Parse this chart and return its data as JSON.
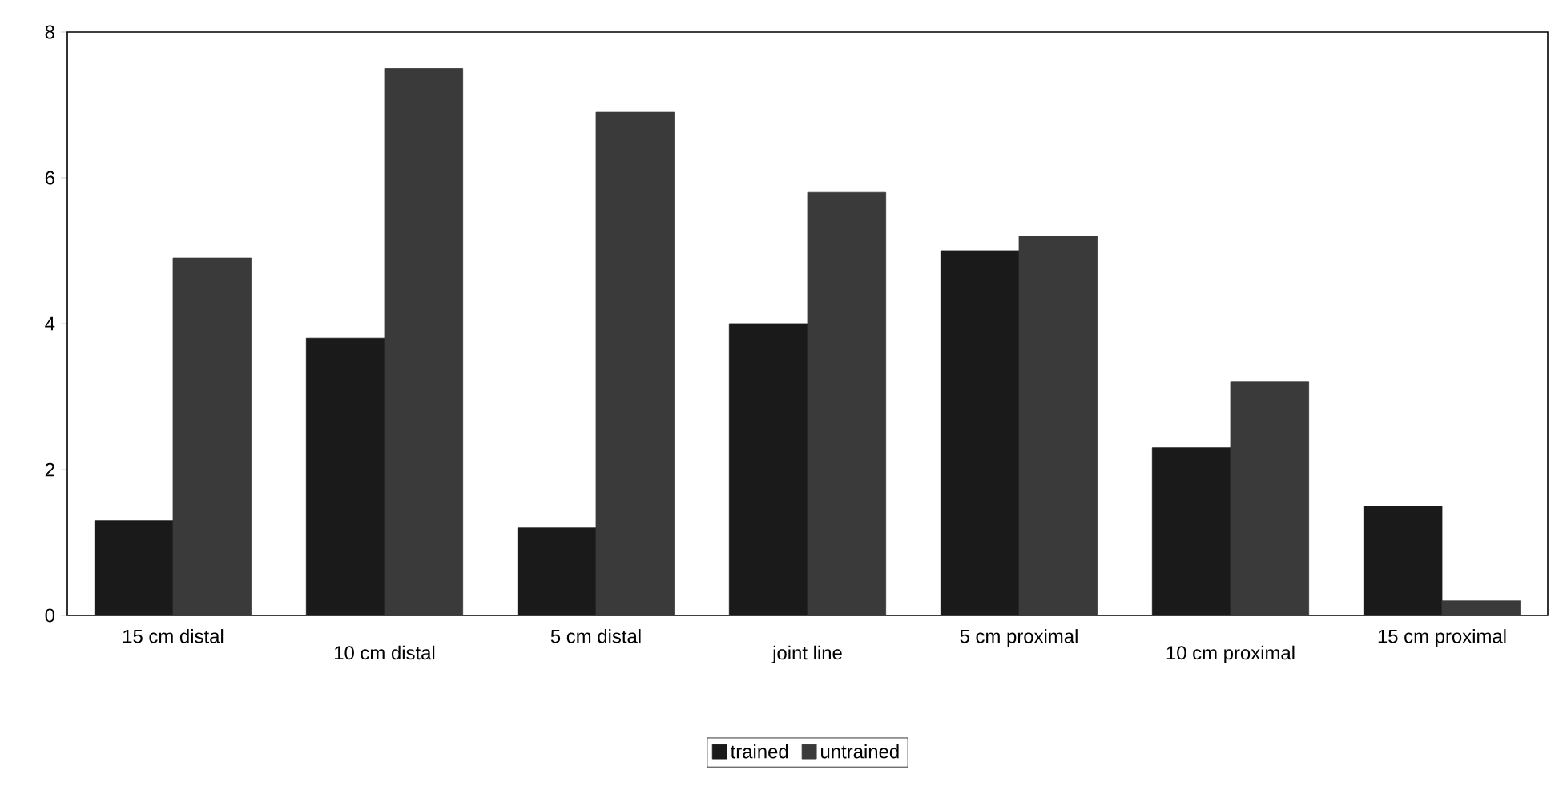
{
  "chart_data": {
    "type": "bar",
    "categories": [
      "15 cm distal",
      "10 cm distal",
      "5 cm distal",
      "joint line",
      "5 cm proximal",
      "10 cm proximal",
      "15 cm proximal"
    ],
    "series": [
      {
        "name": "trained",
        "color": "#1a1a1a",
        "values": [
          1.3,
          3.8,
          1.2,
          4.0,
          5.0,
          2.3,
          1.5
        ]
      },
      {
        "name": "untrained",
        "color": "#3a3a3a",
        "values": [
          4.9,
          7.5,
          6.9,
          5.8,
          5.2,
          3.2,
          0.2
        ]
      }
    ],
    "ylim": [
      0,
      8
    ],
    "yticks": [
      0,
      2,
      4,
      6,
      8
    ],
    "grid": false,
    "legend": "bottom"
  }
}
